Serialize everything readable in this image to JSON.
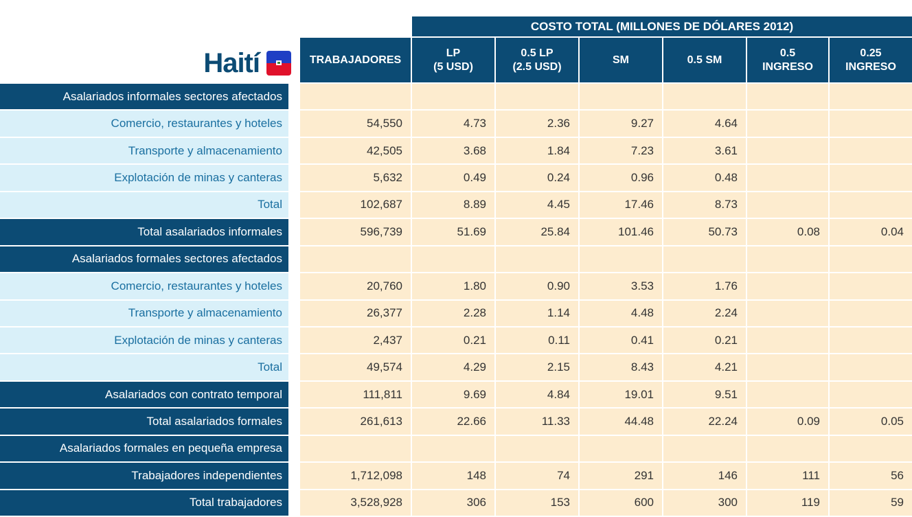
{
  "title": "Haití",
  "table": {
    "group_header": "COSTO TOTAL (MILLONES DE DÓLARES 2012)",
    "columns": [
      "TRABAJADORES",
      "LP\n(5 USD)",
      "0.5 LP\n(2.5 USD)",
      "SM",
      "0.5 SM",
      "0.5\nINGRESO",
      "0.25\nINGRESO"
    ],
    "rows": [
      {
        "label": "Asalariados informales sectores afectados",
        "color": "#0c4b74",
        "values": []
      },
      {
        "label": "Comercio, restaurantes y hoteles",
        "color": "#d9f0f9",
        "values": [
          "54,550",
          "4.73",
          "2.36",
          "9.27",
          "4.64"
        ]
      },
      {
        "label": "Transporte y almacenamiento",
        "color": "#d9f0f9",
        "values": [
          "42,505",
          "3.68",
          "1.84",
          "7.23",
          "3.61"
        ]
      },
      {
        "label": "Explotación de minas y canteras",
        "color": "#d9f0f9",
        "values": [
          "5,632",
          "0.49",
          "0.24",
          "0.96",
          "0.48"
        ]
      },
      {
        "label": "Total",
        "color": "#d9f0f9",
        "values": [
          "102,687",
          "8.89",
          "4.45",
          "17.46",
          "8.73"
        ]
      },
      {
        "label": "Total asalariados informales",
        "color": "#0c4b74",
        "values": [
          "596,739",
          "51.69",
          "25.84",
          "101.46",
          "50.73",
          "0.08",
          "0.04"
        ]
      },
      {
        "label": "Asalariados formales sectores afectados",
        "color": "#0c4b74",
        "values": []
      },
      {
        "label": "Comercio, restaurantes y hoteles",
        "color": "#d9f0f9",
        "values": [
          "20,760",
          "1.80",
          "0.90",
          "3.53",
          "1.76"
        ]
      },
      {
        "label": "Transporte y almacenamiento",
        "color": "#d9f0f9",
        "values": [
          "26,377",
          "2.28",
          "1.14",
          "4.48",
          "2.24"
        ]
      },
      {
        "label": "Explotación de minas y canteras",
        "color": "#d9f0f9",
        "values": [
          "2,437",
          "0.21",
          "0.11",
          "0.41",
          "0.21"
        ]
      },
      {
        "label": "Total",
        "color": "#d9f0f9",
        "values": [
          "49,574",
          "4.29",
          "2.15",
          "8.43",
          "4.21"
        ]
      },
      {
        "label": "Asalariados con contrato temporal",
        "color": "#0c4b74",
        "values": [
          "111,811",
          "9.69",
          "4.84",
          "19.01",
          "9.51"
        ]
      },
      {
        "label": "Total asalariados formales",
        "color": "#0c4b74",
        "values": [
          "261,613",
          "22.66",
          "11.33",
          "44.48",
          "22.24",
          "0.09",
          "0.05"
        ]
      },
      {
        "label": "Asalariados formales en pequeña empresa",
        "color": "#0c4b74",
        "values": []
      },
      {
        "label": "Trabajadores independientes",
        "color": "#0c4b74",
        "values": [
          "1,712,098",
          "148",
          "74",
          "291",
          "146",
          "111",
          "56"
        ]
      },
      {
        "label": "Total trabajadores",
        "color": "#0c4b74",
        "values": [
          "3,528,928",
          "306",
          "153",
          "600",
          "300",
          "119",
          "59"
        ]
      }
    ]
  }
}
